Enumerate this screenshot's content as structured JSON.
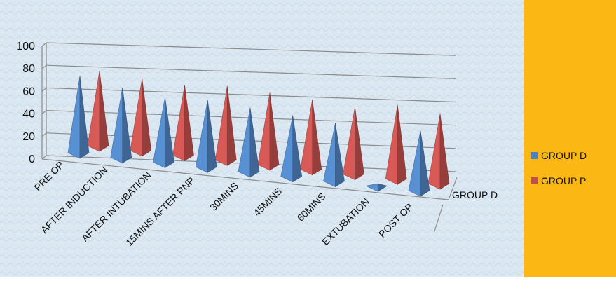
{
  "chart_data": {
    "type": "bar",
    "style": "3d-pyramid",
    "categories": [
      "PRE OP",
      "AFTER INDUCTION",
      "AFTER INTUBATION",
      "15MINS AFTER PNP",
      "30MINS",
      "45MINS",
      "60MINS",
      "EXTUBATION",
      "POST OP"
    ],
    "series": [
      {
        "name": "GROUP D",
        "color": "#4F81BD",
        "values": [
          80,
          73,
          68,
          70,
          67,
          64,
          61,
          5,
          63
        ]
      },
      {
        "name": "GROUP P",
        "color": "#C0504D",
        "values": [
          78,
          75,
          73,
          77,
          75,
          73,
          70,
          77,
          73
        ]
      }
    ],
    "depth_label": "GROUP D",
    "yticks": [
      "0",
      "20",
      "40",
      "60",
      "80",
      "100"
    ],
    "ylim": [
      0,
      100
    ],
    "grid": true,
    "legend": "right",
    "background": "#dbe8f2",
    "legend_background": "#FBB714"
  }
}
